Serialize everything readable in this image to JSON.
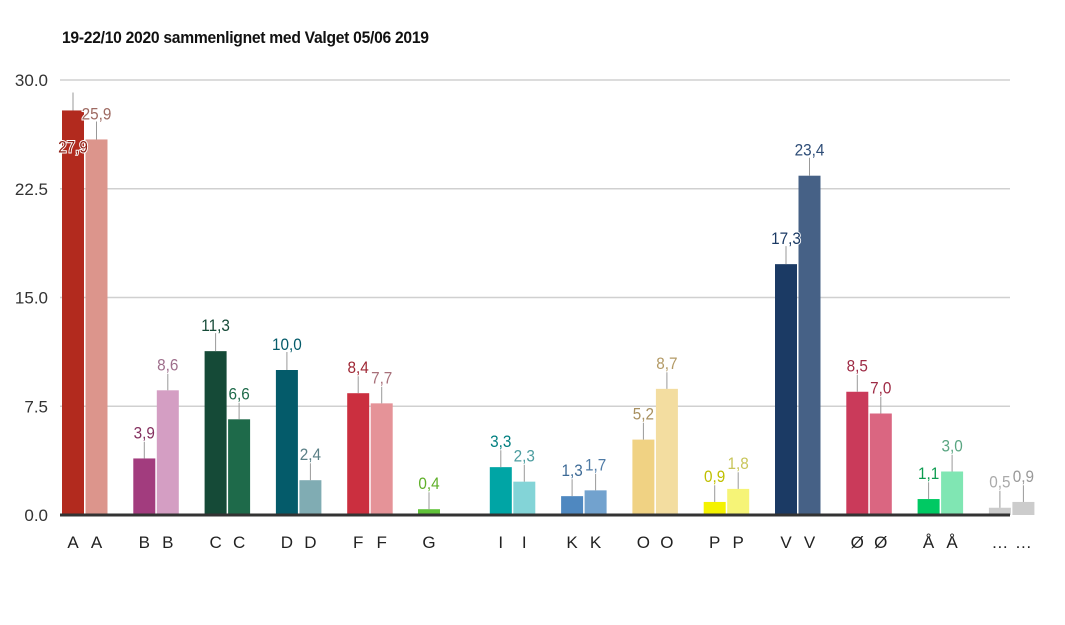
{
  "chart_data": {
    "type": "bar",
    "title": "19-22/10 2020 sammenlignet med Valget 05/06 2019",
    "xlabel": "",
    "ylabel": "",
    "ylim": [
      0,
      30
    ],
    "yticks": [
      "0.0",
      "7.5",
      "15.0",
      "22.5",
      "30.0"
    ],
    "ytick_values": [
      0,
      7.5,
      15,
      22.5,
      30
    ],
    "grid": true,
    "legend": "none",
    "series": [
      {
        "name": "19-22/10 2020",
        "values": [
          27.9,
          3.9,
          11.3,
          10.0,
          8.4,
          0.4,
          3.3,
          1.3,
          5.2,
          0.9,
          17.3,
          8.5,
          1.1,
          0.5
        ]
      },
      {
        "name": "Valget 05/06 2019",
        "values": [
          25.9,
          8.6,
          6.6,
          2.4,
          7.7,
          null,
          2.3,
          1.7,
          8.7,
          1.8,
          23.4,
          7.0,
          3.0,
          0.9
        ]
      }
    ],
    "categories": [
      "A",
      "B",
      "C",
      "D",
      "F",
      "G",
      "I",
      "K",
      "O",
      "P",
      "V",
      "Ø",
      "Å",
      "…"
    ],
    "data_labels": [
      [
        "27,9",
        "25,9"
      ],
      [
        "3,9",
        "8,6"
      ],
      [
        "11,3",
        "6,6"
      ],
      [
        "10,0",
        "2,4"
      ],
      [
        "8,4",
        "7,7"
      ],
      [
        "0,4",
        null
      ],
      [
        "3,3",
        "2,3"
      ],
      [
        "1,3",
        "1,7"
      ],
      [
        "5,2",
        "8,7"
      ],
      [
        "0,9",
        "1,8"
      ],
      [
        "17,3",
        "23,4"
      ],
      [
        "8,5",
        "7,0"
      ],
      [
        "1,1",
        "3,0"
      ],
      [
        "0,5",
        "0,9"
      ]
    ],
    "colors": [
      [
        "#b22a1e",
        "#dc958c"
      ],
      [
        "#a23c7e",
        "#d49ec3"
      ],
      [
        "#154a37",
        "#1e6a4a"
      ],
      [
        "#045b6a",
        "#80acb3"
      ],
      [
        "#cb2f3f",
        "#e59398"
      ],
      [
        "#60c23a",
        null
      ],
      [
        "#00a5a5",
        "#83d4d7"
      ],
      [
        "#4f88c0",
        "#72a2ce"
      ],
      [
        "#f0d283",
        "#f3dda0"
      ],
      [
        "#f4f200",
        "#f6f477"
      ],
      [
        "#1b3a64",
        "#466186"
      ],
      [
        "#ca3a5a",
        "#da6681"
      ],
      [
        "#00c963",
        "#80e6b3"
      ],
      [
        "#cccccc",
        "#cccccc"
      ]
    ],
    "label_colors": [
      [
        "#8e1e14",
        "#9e6a62"
      ],
      [
        "#84305f",
        "#9e6e8b"
      ],
      [
        "#154a37",
        "#1e6a4a"
      ],
      [
        "#045b6a",
        "#5a7f86"
      ],
      [
        "#9e2633",
        "#a8707a"
      ],
      [
        "#60b02a",
        null
      ],
      [
        "#007f80",
        "#4d9da0"
      ],
      [
        "#3d6a96",
        "#4f7ba6"
      ],
      [
        "#a89060",
        "#b39a66"
      ],
      [
        "#bfbf00",
        "#c8c55a"
      ],
      [
        "#1b3a64",
        "#2e4d77"
      ],
      [
        "#9e2b45",
        "#9e2b45"
      ],
      [
        "#0c9c50",
        "#5aa682"
      ],
      [
        "#aaaaaa",
        "#999999"
      ]
    ]
  }
}
